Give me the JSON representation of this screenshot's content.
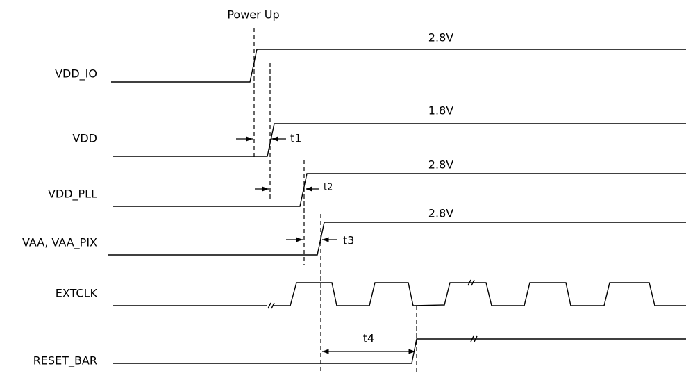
{
  "title": "Power Up",
  "signals": [
    {
      "label": "VDD_IO",
      "level": "2.8V"
    },
    {
      "label": "VDD",
      "level": "1.8V"
    },
    {
      "label": "VDD_PLL",
      "level": "2.8V"
    },
    {
      "label": "VAA, VAA_PIX",
      "level": "2.8V"
    },
    {
      "label": "EXTCLK"
    },
    {
      "label": "RESET_BAR"
    }
  ],
  "timings": [
    "t1",
    "t2",
    "t3",
    "t4"
  ]
}
